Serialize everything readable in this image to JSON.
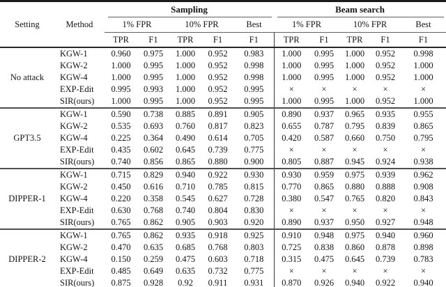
{
  "page": {
    "background": "#ffffff",
    "text_color": "#141414",
    "rule_color": "#1b1b1b"
  },
  "table": {
    "header": {
      "setting": "Setting",
      "method": "Method",
      "groups": [
        {
          "label": "Sampling"
        },
        {
          "label": "Beam search"
        }
      ],
      "sub": {
        "fpr1": "1% FPR",
        "fpr10": "10% FPR",
        "best": "Best"
      },
      "metrics": {
        "tpr": "TPR",
        "f1": "F1"
      }
    },
    "na_symbol": "×",
    "blocks": [
      {
        "setting": "No attack",
        "rows": [
          {
            "method": "KGW-1",
            "values": [
              "0.960",
              "0.975",
              "1.000",
              "0.952",
              "0.983",
              "1.000",
              "0.995",
              "1.000",
              "0.952",
              "0.998"
            ]
          },
          {
            "method": "KGW-2",
            "values": [
              "1.000",
              "0.995",
              "1.000",
              "0.952",
              "0.998",
              "1.000",
              "0.995",
              "1.000",
              "0.952",
              "1.000"
            ]
          },
          {
            "method": "KGW-4",
            "values": [
              "1.000",
              "0.995",
              "1.000",
              "0.952",
              "0.998",
              "1.000",
              "0.995",
              "1.000",
              "0.952",
              "1.000"
            ]
          },
          {
            "method": "EXP-Edit",
            "values": [
              "0.995",
              "0.993",
              "1.000",
              "0.952",
              "0.995",
              "×",
              "×",
              "×",
              "×",
              "×"
            ]
          },
          {
            "method": "SIR(ours)",
            "values": [
              "1.000",
              "0.995",
              "1.000",
              "0.952",
              "0.995",
              "1.000",
              "0.995",
              "1.000",
              "0.952",
              "1.000"
            ]
          }
        ]
      },
      {
        "setting": "GPT3.5",
        "rows": [
          {
            "method": "KGW-1",
            "values": [
              "0.590",
              "0.738",
              "0.885",
              "0.891",
              "0.905",
              "0.890",
              "0.937",
              "0.965",
              "0.935",
              "0.955"
            ]
          },
          {
            "method": "KGW-2",
            "values": [
              "0.535",
              "0.693",
              "0.760",
              "0.817",
              "0.823",
              "0.655",
              "0.787",
              "0.795",
              "0.839",
              "0.865"
            ]
          },
          {
            "method": "KGW-4",
            "values": [
              "0.225",
              "0.364",
              "0.490",
              "0.614",
              "0.705",
              "0.420",
              "0.587",
              "0.660",
              "0.750",
              "0.795"
            ]
          },
          {
            "method": "EXP-Edit",
            "values": [
              "0.435",
              "0.602",
              "0.645",
              "0.739",
              "0.775",
              "×",
              "×",
              "×",
              "×",
              "×"
            ]
          },
          {
            "method": "SIR(ours)",
            "values": [
              "0.740",
              "0.856",
              "0.865",
              "0.880",
              "0.900",
              "0.805",
              "0.887",
              "0.945",
              "0.924",
              "0.938"
            ]
          }
        ]
      },
      {
        "setting": "DIPPER-1",
        "rows": [
          {
            "method": "KGW-1",
            "values": [
              "0.715",
              "0.829",
              "0.940",
              "0.922",
              "0.930",
              "0.930",
              "0.959",
              "0.975",
              "0.939",
              "0.962"
            ]
          },
          {
            "method": "KGW-2",
            "values": [
              "0.450",
              "0.616",
              "0.710",
              "0.785",
              "0.815",
              "0.770",
              "0.865",
              "0.880",
              "0.888",
              "0.908"
            ]
          },
          {
            "method": "KGW-4",
            "values": [
              "0.220",
              "0.358",
              "0.545",
              "0.627",
              "0.728",
              "0.380",
              "0.547",
              "0.765",
              "0.820",
              "0.843"
            ]
          },
          {
            "method": "EXP-Edit",
            "values": [
              "0.630",
              "0.768",
              "0.740",
              "0.804",
              "0.830",
              "×",
              "×",
              "×",
              "×",
              "×"
            ]
          },
          {
            "method": "SIR(ours)",
            "values": [
              "0.765",
              "0.862",
              "0.905",
              "0.903",
              "0.920",
              "0.890",
              "0.937",
              "0.950",
              "0.927",
              "0.948"
            ]
          }
        ]
      },
      {
        "setting": "DIPPER-2",
        "rows": [
          {
            "method": "KGW-1",
            "values": [
              "0.765",
              "0.862",
              "0.935",
              "0.918",
              "0.925",
              "0.910",
              "0.948",
              "0.975",
              "0.940",
              "0.960"
            ]
          },
          {
            "method": "KGW-2",
            "values": [
              "0.470",
              "0.635",
              "0.685",
              "0.768",
              "0.803",
              "0.725",
              "0.838",
              "0.860",
              "0.878",
              "0.898"
            ]
          },
          {
            "method": "KGW-4",
            "values": [
              "0.150",
              "0.259",
              "0.475",
              "0.603",
              "0.718",
              "0.315",
              "0.475",
              "0.645",
              "0.739",
              "0.783"
            ]
          },
          {
            "method": "EXP-Edit",
            "values": [
              "0.485",
              "0.649",
              "0.635",
              "0.732",
              "0.775",
              "×",
              "×",
              "×",
              "×",
              "×"
            ]
          },
          {
            "method": "SIR(ours)",
            "values": [
              "0.875",
              "0.928",
              "0.92",
              "0.911",
              "0.931",
              "0.870",
              "0.926",
              "0.940",
              "0.922",
              "0.940"
            ]
          }
        ]
      }
    ]
  }
}
